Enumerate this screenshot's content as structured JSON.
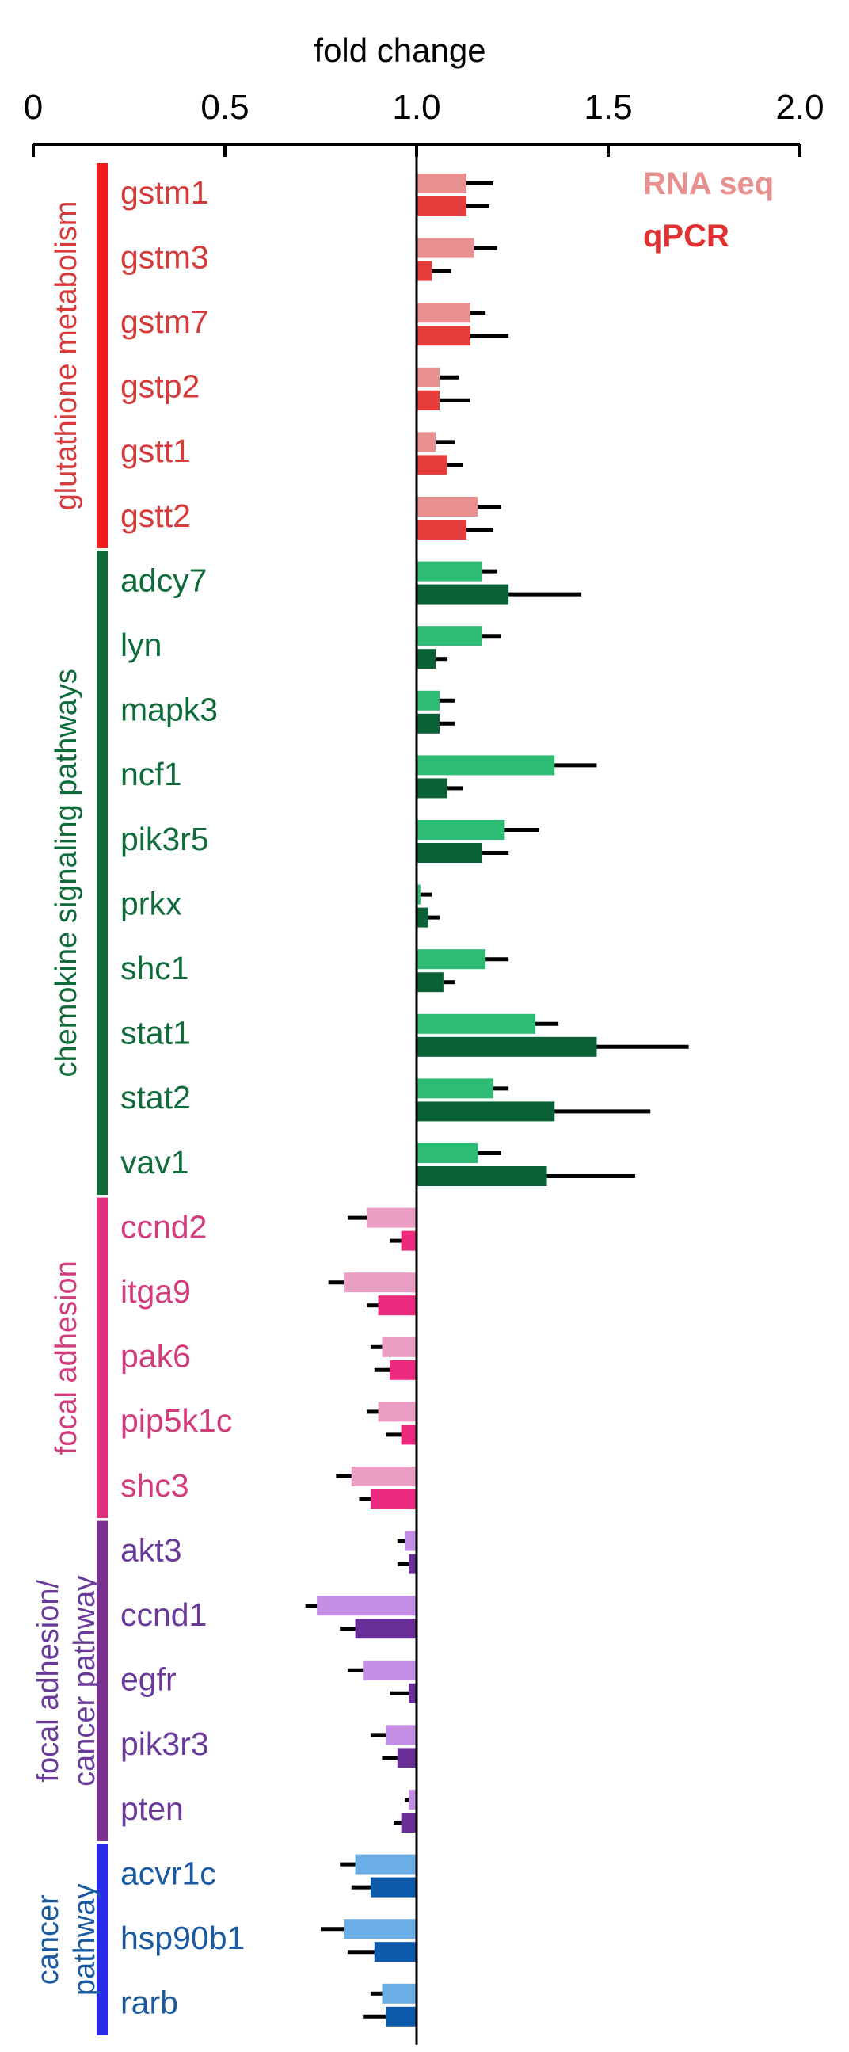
{
  "chart_data": {
    "type": "bar",
    "orientation": "horizontal",
    "xlabel": "fold change",
    "xlim": [
      0,
      2
    ],
    "xticks": [
      0,
      0.5,
      1.0,
      1.5,
      2.0
    ],
    "xtick_labels": [
      "0",
      "0.5",
      "1.0",
      "1.5",
      "2.0"
    ],
    "legend": {
      "placement": "top-right",
      "entries": [
        {
          "name": "RNA seq",
          "color": "#e89090"
        },
        {
          "name": "qPCR",
          "color": "#e03030"
        }
      ]
    },
    "groups": [
      {
        "name": "glutathione metabolism",
        "label_lines": [
          "glutathione metabolism"
        ],
        "color": "#d63a3a",
        "bar_color": "#ee1c1c",
        "light_color": "#e89090",
        "dark_color": "#e63c3c",
        "genes": [
          "gstm1",
          "gstm3",
          "gstm7",
          "gstp2",
          "gstt1",
          "gstt2"
        ]
      },
      {
        "name": "chemokine signaling pathways",
        "label_lines": [
          "chemokine signaling pathways"
        ],
        "color": "#0f6b3a",
        "bar_color": "#0f6b3a",
        "light_color": "#2cbc73",
        "dark_color": "#0b6136",
        "genes": [
          "adcy7",
          "lyn",
          "mapk3",
          "ncf1",
          "pik3r5",
          "prkx",
          "shc1",
          "stat1",
          "stat2",
          "vav1"
        ]
      },
      {
        "name": "focal adhesion",
        "label_lines": [
          "focal adhesion"
        ],
        "color": "#d23c7c",
        "bar_color": "#e0317e",
        "light_color": "#eb9ec3",
        "dark_color": "#ec2a7d",
        "genes": [
          "ccnd2",
          "itga9",
          "pak6",
          "pip5k1c",
          "shc3"
        ]
      },
      {
        "name": "focal adhesion/ cancer pathway",
        "label_lines": [
          "focal adhesion/",
          "cancer pathway"
        ],
        "color": "#6a3a9a",
        "bar_color": "#7a3090",
        "light_color": "#c38ee3",
        "dark_color": "#6a2e98",
        "genes": [
          "akt3",
          "ccnd1",
          "egfr",
          "pik3r3",
          "pten"
        ]
      },
      {
        "name": "cancer pathway",
        "label_lines": [
          "cancer",
          "pathway"
        ],
        "color": "#1a5aa0",
        "bar_color": "#2a2ae8",
        "light_color": "#6aaee5",
        "dark_color": "#0e5aaa",
        "genes": [
          "acvr1c",
          "hsp90b1",
          "rarb"
        ]
      }
    ],
    "categories": [
      "gstm1",
      "gstm3",
      "gstm7",
      "gstp2",
      "gstt1",
      "gstt2",
      "adcy7",
      "lyn",
      "mapk3",
      "ncf1",
      "pik3r5",
      "prkx",
      "shc1",
      "stat1",
      "stat2",
      "vav1",
      "ccnd2",
      "itga9",
      "pak6",
      "pip5k1c",
      "shc3",
      "akt3",
      "ccnd1",
      "egfr",
      "pik3r3",
      "pten",
      "acvr1c",
      "hsp90b1",
      "rarb"
    ],
    "series": [
      {
        "name": "RNA seq",
        "values": [
          1.13,
          1.15,
          1.14,
          1.06,
          1.05,
          1.16,
          1.17,
          1.17,
          1.06,
          1.36,
          1.23,
          1.01,
          1.18,
          1.31,
          1.2,
          1.16,
          0.87,
          0.81,
          0.91,
          0.9,
          0.83,
          0.97,
          0.74,
          0.86,
          0.92,
          0.98,
          0.84,
          0.81,
          0.91
        ],
        "errors": [
          0.07,
          0.06,
          0.04,
          0.05,
          0.05,
          0.06,
          0.04,
          0.05,
          0.04,
          0.11,
          0.09,
          0.03,
          0.06,
          0.06,
          0.04,
          0.06,
          0.05,
          0.04,
          0.03,
          0.03,
          0.04,
          0.02,
          0.03,
          0.04,
          0.04,
          0.01,
          0.04,
          0.06,
          0.03
        ]
      },
      {
        "name": "qPCR",
        "values": [
          1.13,
          1.04,
          1.14,
          1.06,
          1.08,
          1.13,
          1.24,
          1.05,
          1.06,
          1.08,
          1.17,
          1.03,
          1.07,
          1.47,
          1.36,
          1.34,
          0.96,
          0.9,
          0.93,
          0.96,
          0.88,
          0.98,
          0.84,
          0.98,
          0.95,
          0.96,
          0.88,
          0.89,
          0.92
        ],
        "errors": [
          0.06,
          0.05,
          0.1,
          0.08,
          0.04,
          0.07,
          0.19,
          0.03,
          0.04,
          0.04,
          0.07,
          0.03,
          0.03,
          0.24,
          0.25,
          0.23,
          0.03,
          0.03,
          0.04,
          0.04,
          0.03,
          0.03,
          0.04,
          0.05,
          0.04,
          0.02,
          0.05,
          0.07,
          0.06
        ]
      }
    ],
    "grid": false
  }
}
